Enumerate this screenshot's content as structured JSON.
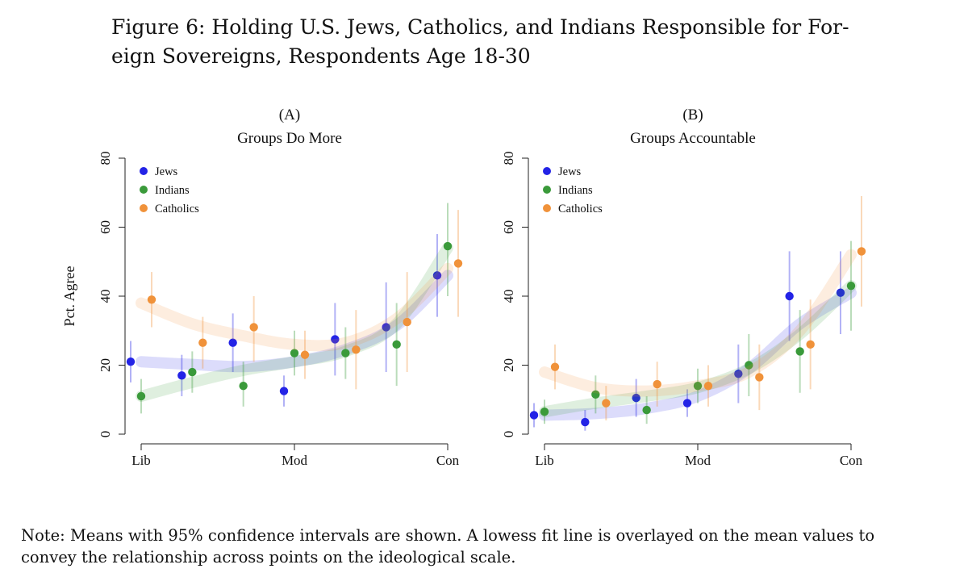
{
  "figure": {
    "title_line1": "Figure 6: Holding U.S. Jews, Catholics, and Indians Responsible for For-",
    "title_line2": "eign Sovereigns, Respondents Age 18-30"
  },
  "note": {
    "line1": "Note: Means with 95% confidence intervals are shown. A lowess fit line is overlayed on the mean values to",
    "line2": "convey the relationship across points on the ideological scale."
  },
  "colors": {
    "Jews": "#2323e6",
    "Indians": "#3a9a3a",
    "Catholics": "#f0923a"
  },
  "chart_data": [
    {
      "type": "scatter",
      "panel_letter": "(A)",
      "title": "Groups Do More",
      "ylabel": "Pct. Agree",
      "xlabel": "",
      "ylim": [
        0,
        80
      ],
      "yticks": [
        0,
        20,
        40,
        60,
        80
      ],
      "x_ticks": [
        {
          "x": 1,
          "label": "Lib"
        },
        {
          "x": 4,
          "label": "Mod"
        },
        {
          "x": 7,
          "label": "Con"
        }
      ],
      "xlim": [
        1,
        7
      ],
      "legend_position": "top-left",
      "grid": false,
      "series": [
        {
          "name": "Jews",
          "points": [
            {
              "x": 1,
              "y": 21,
              "lo": 15,
              "hi": 27
            },
            {
              "x": 2,
              "y": 17,
              "lo": 11,
              "hi": 23
            },
            {
              "x": 3,
              "y": 26.5,
              "lo": 18,
              "hi": 35
            },
            {
              "x": 4,
              "y": 12.5,
              "lo": 8,
              "hi": 17
            },
            {
              "x": 5,
              "y": 27.5,
              "lo": 17,
              "hi": 38
            },
            {
              "x": 6,
              "y": 31,
              "lo": 18,
              "hi": 44
            },
            {
              "x": 7,
              "y": 46,
              "lo": 34,
              "hi": 58
            }
          ],
          "fit": [
            21,
            20.2,
            19.6,
            21,
            24.5,
            31.5,
            46
          ]
        },
        {
          "name": "Indians",
          "points": [
            {
              "x": 1,
              "y": 11,
              "lo": 6,
              "hi": 16
            },
            {
              "x": 2,
              "y": 18,
              "lo": 12,
              "hi": 24
            },
            {
              "x": 3,
              "y": 14,
              "lo": 8,
              "hi": 21
            },
            {
              "x": 4,
              "y": 23.5,
              "lo": 17,
              "hi": 30
            },
            {
              "x": 5,
              "y": 23.5,
              "lo": 16,
              "hi": 31
            },
            {
              "x": 6,
              "y": 26,
              "lo": 14,
              "hi": 38
            },
            {
              "x": 7,
              "y": 54.5,
              "lo": 40,
              "hi": 67
            }
          ],
          "fit": [
            11,
            15,
            18.5,
            21,
            24,
            32,
            54
          ]
        },
        {
          "name": "Catholics",
          "points": [
            {
              "x": 1,
              "y": 39,
              "lo": 31,
              "hi": 47
            },
            {
              "x": 2,
              "y": 26.5,
              "lo": 19,
              "hi": 34
            },
            {
              "x": 3,
              "y": 31,
              "lo": 21,
              "hi": 40
            },
            {
              "x": 4,
              "y": 23,
              "lo": 16,
              "hi": 30
            },
            {
              "x": 5,
              "y": 24.5,
              "lo": 13,
              "hi": 36
            },
            {
              "x": 6,
              "y": 32.5,
              "lo": 18,
              "hi": 47
            },
            {
              "x": 7,
              "y": 49.5,
              "lo": 34,
              "hi": 65
            }
          ],
          "fit": [
            38,
            32,
            28.5,
            26,
            26.5,
            33.5,
            48
          ]
        }
      ]
    },
    {
      "type": "scatter",
      "panel_letter": "(B)",
      "title": "Groups Accountable",
      "ylabel": "",
      "xlabel": "",
      "ylim": [
        0,
        80
      ],
      "yticks": [
        0,
        20,
        40,
        60,
        80
      ],
      "x_ticks": [
        {
          "x": 1,
          "label": "Lib"
        },
        {
          "x": 4,
          "label": "Mod"
        },
        {
          "x": 7,
          "label": "Con"
        }
      ],
      "xlim": [
        1,
        7
      ],
      "legend_position": "top-left",
      "grid": false,
      "series": [
        {
          "name": "Jews",
          "points": [
            {
              "x": 1,
              "y": 5.5,
              "lo": 2,
              "hi": 9
            },
            {
              "x": 2,
              "y": 3.5,
              "lo": 1,
              "hi": 7
            },
            {
              "x": 3,
              "y": 10.5,
              "lo": 5,
              "hi": 16
            },
            {
              "x": 4,
              "y": 9,
              "lo": 5,
              "hi": 13
            },
            {
              "x": 5,
              "y": 17.5,
              "lo": 9,
              "hi": 26
            },
            {
              "x": 6,
              "y": 40,
              "lo": 27,
              "hi": 53
            },
            {
              "x": 7,
              "y": 41,
              "lo": 29,
              "hi": 53
            }
          ],
          "fit": [
            5.5,
            6,
            7.5,
            11,
            19,
            32,
            41
          ]
        },
        {
          "name": "Indians",
          "points": [
            {
              "x": 1,
              "y": 6.5,
              "lo": 3,
              "hi": 10
            },
            {
              "x": 2,
              "y": 11.5,
              "lo": 6,
              "hi": 17
            },
            {
              "x": 3,
              "y": 7,
              "lo": 3,
              "hi": 11
            },
            {
              "x": 4,
              "y": 14,
              "lo": 9,
              "hi": 19
            },
            {
              "x": 5,
              "y": 20,
              "lo": 11,
              "hi": 29
            },
            {
              "x": 6,
              "y": 24,
              "lo": 12,
              "hi": 36
            },
            {
              "x": 7,
              "y": 43,
              "lo": 30,
              "hi": 56
            }
          ],
          "fit": [
            6.5,
            9,
            11,
            13.5,
            19,
            29,
            43
          ]
        },
        {
          "name": "Catholics",
          "points": [
            {
              "x": 1,
              "y": 19.5,
              "lo": 13,
              "hi": 26
            },
            {
              "x": 2,
              "y": 9,
              "lo": 4,
              "hi": 14
            },
            {
              "x": 3,
              "y": 14.5,
              "lo": 8,
              "hi": 21
            },
            {
              "x": 4,
              "y": 14,
              "lo": 8,
              "hi": 20
            },
            {
              "x": 5,
              "y": 16.5,
              "lo": 7,
              "hi": 26
            },
            {
              "x": 6,
              "y": 26,
              "lo": 13,
              "hi": 39
            },
            {
              "x": 7,
              "y": 53,
              "lo": 37,
              "hi": 69
            }
          ],
          "fit": [
            18,
            13.5,
            12.5,
            14,
            18,
            30,
            52
          ]
        }
      ]
    }
  ]
}
